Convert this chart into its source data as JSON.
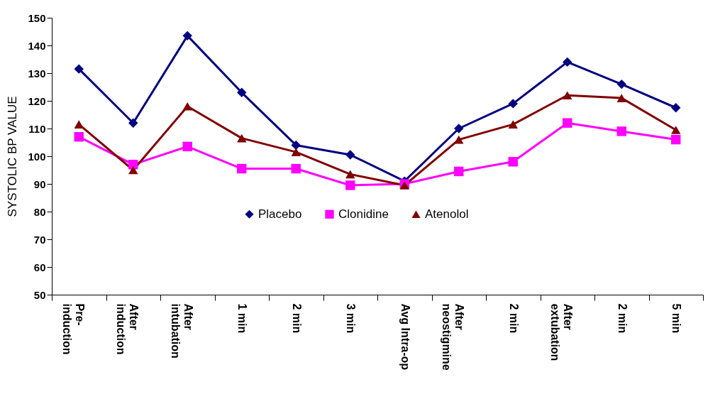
{
  "chart_data": {
    "type": "line",
    "ylabel": "SYSTOLIC BP VALUE",
    "categories": [
      "Pre-\ninduction",
      "After\ninduction",
      "After\nintubation",
      "1 min",
      "2 min",
      "3 min",
      "Avg Intra-op",
      "After\nneostigmine",
      "2 min",
      "After\nextubation",
      "2 min",
      "5 min"
    ],
    "series": [
      {
        "name": "Placebo",
        "color": "#000080",
        "marker": "diamond",
        "values": [
          131.5,
          112,
          143.5,
          123,
          104,
          100.5,
          91,
          110,
          119,
          134,
          126,
          117.5
        ]
      },
      {
        "name": "Clonidine",
        "color": "#ff00ff",
        "marker": "square",
        "values": [
          107,
          97,
          103.5,
          95.5,
          95.5,
          89.5,
          90,
          94.5,
          98,
          112,
          109,
          106
        ]
      },
      {
        "name": "Atenolol",
        "color": "#800000",
        "marker": "triangle",
        "values": [
          111.5,
          95,
          118,
          106.5,
          101.5,
          93.5,
          89.5,
          106,
          111.5,
          122,
          121,
          109.5
        ]
      }
    ],
    "ylim": [
      50,
      150
    ],
    "yticks": [
      50,
      60,
      70,
      80,
      90,
      100,
      110,
      120,
      130,
      140,
      150
    ],
    "grid": false,
    "legend": "center",
    "line_style": "solid"
  }
}
